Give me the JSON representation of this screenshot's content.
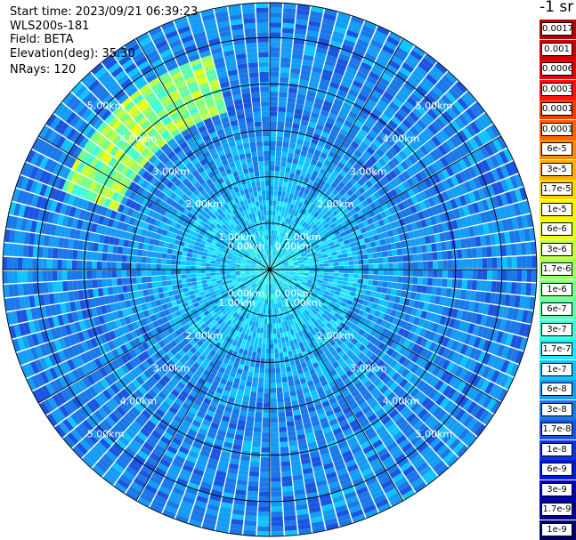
{
  "info": {
    "start_time": "Start time: 2023/09/21 06:39:23",
    "device": "WLS200s-181",
    "field": "Field: BETA",
    "elevation": "Elevation(deg): 35.30",
    "nrays": "NRays: 120"
  },
  "chart_data": {
    "type": "heatmap",
    "projection": "polar-ppi",
    "field": "BETA",
    "units": "-1 sr",
    "elevation_deg": 35.3,
    "n_rays": 120,
    "range_rings_km": [
      0,
      1,
      2,
      3,
      4,
      5,
      5.75
    ],
    "range_ring_labels": [
      "0.00km",
      "1.00km",
      "2.00km",
      "3.00km",
      "4.00km",
      "5.00km"
    ],
    "azimuth_spokes_deg": [
      0,
      30,
      60,
      90,
      120,
      150,
      180,
      210,
      240,
      270,
      300,
      330
    ],
    "max_range_km": 5.75,
    "dominant_value_range": [
      "1.7e-8",
      "3e-7"
    ],
    "enhanced_band": {
      "azimuth_deg": [
        290,
        345
      ],
      "range_km": [
        3.5,
        4.8
      ],
      "value_range": [
        "3e-7",
        "6e-6"
      ]
    },
    "colorbar": {
      "title": "-1 sr",
      "labels": [
        "0.0017",
        "0.001",
        "0.0006",
        "0.0003",
        "0.00017",
        "0.0001",
        "6e-5",
        "3e-5",
        "1.7e-5",
        "1e-5",
        "6e-6",
        "3e-6",
        "1.7e-6",
        "1e-6",
        "6e-7",
        "3e-7",
        "1.7e-7",
        "1e-7",
        "6e-8",
        "3e-8",
        "1.7e-8",
        "1e-8",
        "6e-9",
        "3e-9",
        "1.7e-9",
        "1e-9"
      ],
      "colors": [
        "#b30000",
        "#ce0000",
        "#e80000",
        "#ff1010",
        "#ff3a00",
        "#ff6000",
        "#ff8a00",
        "#ffb000",
        "#ffd400",
        "#fff000",
        "#e6ff1a",
        "#c2ff3f",
        "#9cff66",
        "#7cff8a",
        "#5cffb0",
        "#3cffd9",
        "#1fe6ff",
        "#10c4ff",
        "#159cf5",
        "#1a78e8",
        "#1a55e0",
        "#0f32e0",
        "#0018d8",
        "#0000b8",
        "#000090",
        "#000066"
      ]
    }
  }
}
